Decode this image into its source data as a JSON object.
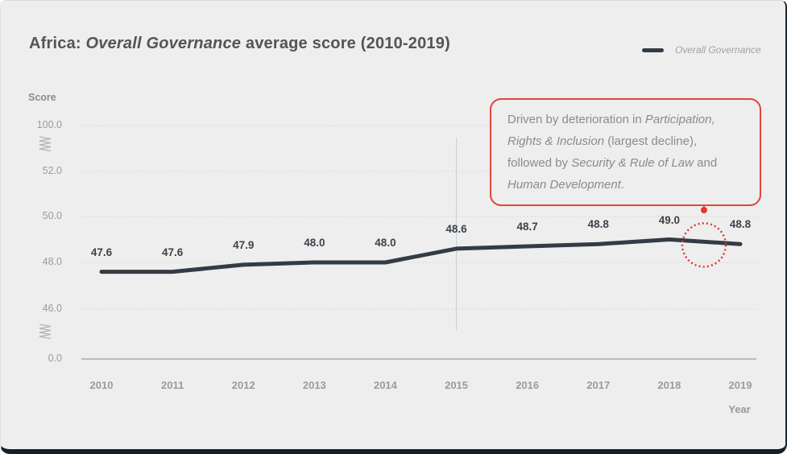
{
  "page": {
    "background": "#eeeeee",
    "frame_color": "#17202b"
  },
  "header": {
    "title_lines": [
      [
        {
          "t": "Africa: "
        },
        {
          "t": "Overall Governance",
          "i": true
        },
        {
          "t": " average score (2010-2019)"
        }
      ]
    ]
  },
  "legend": {
    "label": "Overall Governance",
    "swatch_color": "#333b45"
  },
  "chart_data": {
    "type": "line",
    "title": "Africa: Overall Governance average score (2010-2019)",
    "x": [
      "2010",
      "2011",
      "2012",
      "2013",
      "2014",
      "2015",
      "2016",
      "2017",
      "2018",
      "2019"
    ],
    "series": [
      {
        "name": "Overall Governance",
        "values": [
          47.6,
          47.6,
          47.9,
          48.0,
          48.0,
          48.6,
          48.7,
          48.8,
          49.0,
          48.8
        ]
      }
    ],
    "xlabel": "Year",
    "ylabel": "Score",
    "yticks": [
      100.0,
      52.0,
      50.0,
      48.0,
      46.0,
      0.0
    ],
    "ylim_displayed": [
      0.0,
      100.0
    ],
    "axis_break": true,
    "grid": "horizontal-dotted",
    "legend_position": "top-right",
    "line_color": "#333b45",
    "vertical_reference_line_x": "2015",
    "highlight": {
      "type": "dotted-circle",
      "color": "#e0382e",
      "between_x": [
        "2018",
        "2019"
      ]
    }
  },
  "annotation": {
    "border_color": "#e0453c",
    "lines": [
      [
        {
          "t": "Driven by deterioration in "
        },
        {
          "t": "Participation,",
          "i": true
        }
      ],
      [
        {
          "t": "Rights & Inclusion",
          "i": true
        },
        {
          "t": " (largest decline),"
        }
      ],
      [
        {
          "t": "followed by "
        },
        {
          "t": "Security & Rule of Law",
          "i": true
        },
        {
          "t": " and"
        }
      ],
      [
        {
          "t": "Human Development",
          "i": true
        },
        {
          "t": "."
        }
      ]
    ]
  }
}
